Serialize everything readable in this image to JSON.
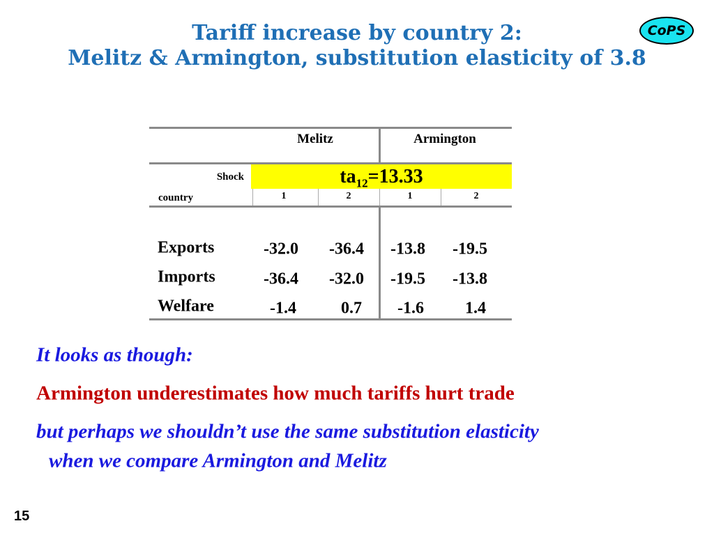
{
  "header": {
    "title_lines": [
      "Tariff increase by country 2:",
      "Melitz & Armington, substitution elasticity of 3.8"
    ],
    "logo": "CoPS"
  },
  "table": {
    "groups": [
      "Melitz",
      "Armington"
    ],
    "shock_label": "Shock",
    "shock": {
      "name": "ta",
      "subscript": "12",
      "value": "=13.33"
    },
    "row_header": "country",
    "columns": [
      "1",
      "2",
      "1",
      "2"
    ],
    "rows": [
      {
        "label": "Exports",
        "values": [
          "-32.0",
          "-36.4",
          "-13.8",
          "-19.5"
        ]
      },
      {
        "label": "Imports",
        "values": [
          "-36.4",
          "-32.0",
          "-19.5",
          "-13.8"
        ]
      },
      {
        "label": "Welfare",
        "values": [
          "-1.4",
          "0.7",
          "-1.6",
          "1.4"
        ]
      }
    ]
  },
  "notes": [
    "It looks as though:",
    "Armington underestimates how much tariffs hurt trade",
    "but perhaps we shouldn’t use the same substitution elasticity",
    "when we compare Armington and Melitz"
  ],
  "page_number": "15"
}
